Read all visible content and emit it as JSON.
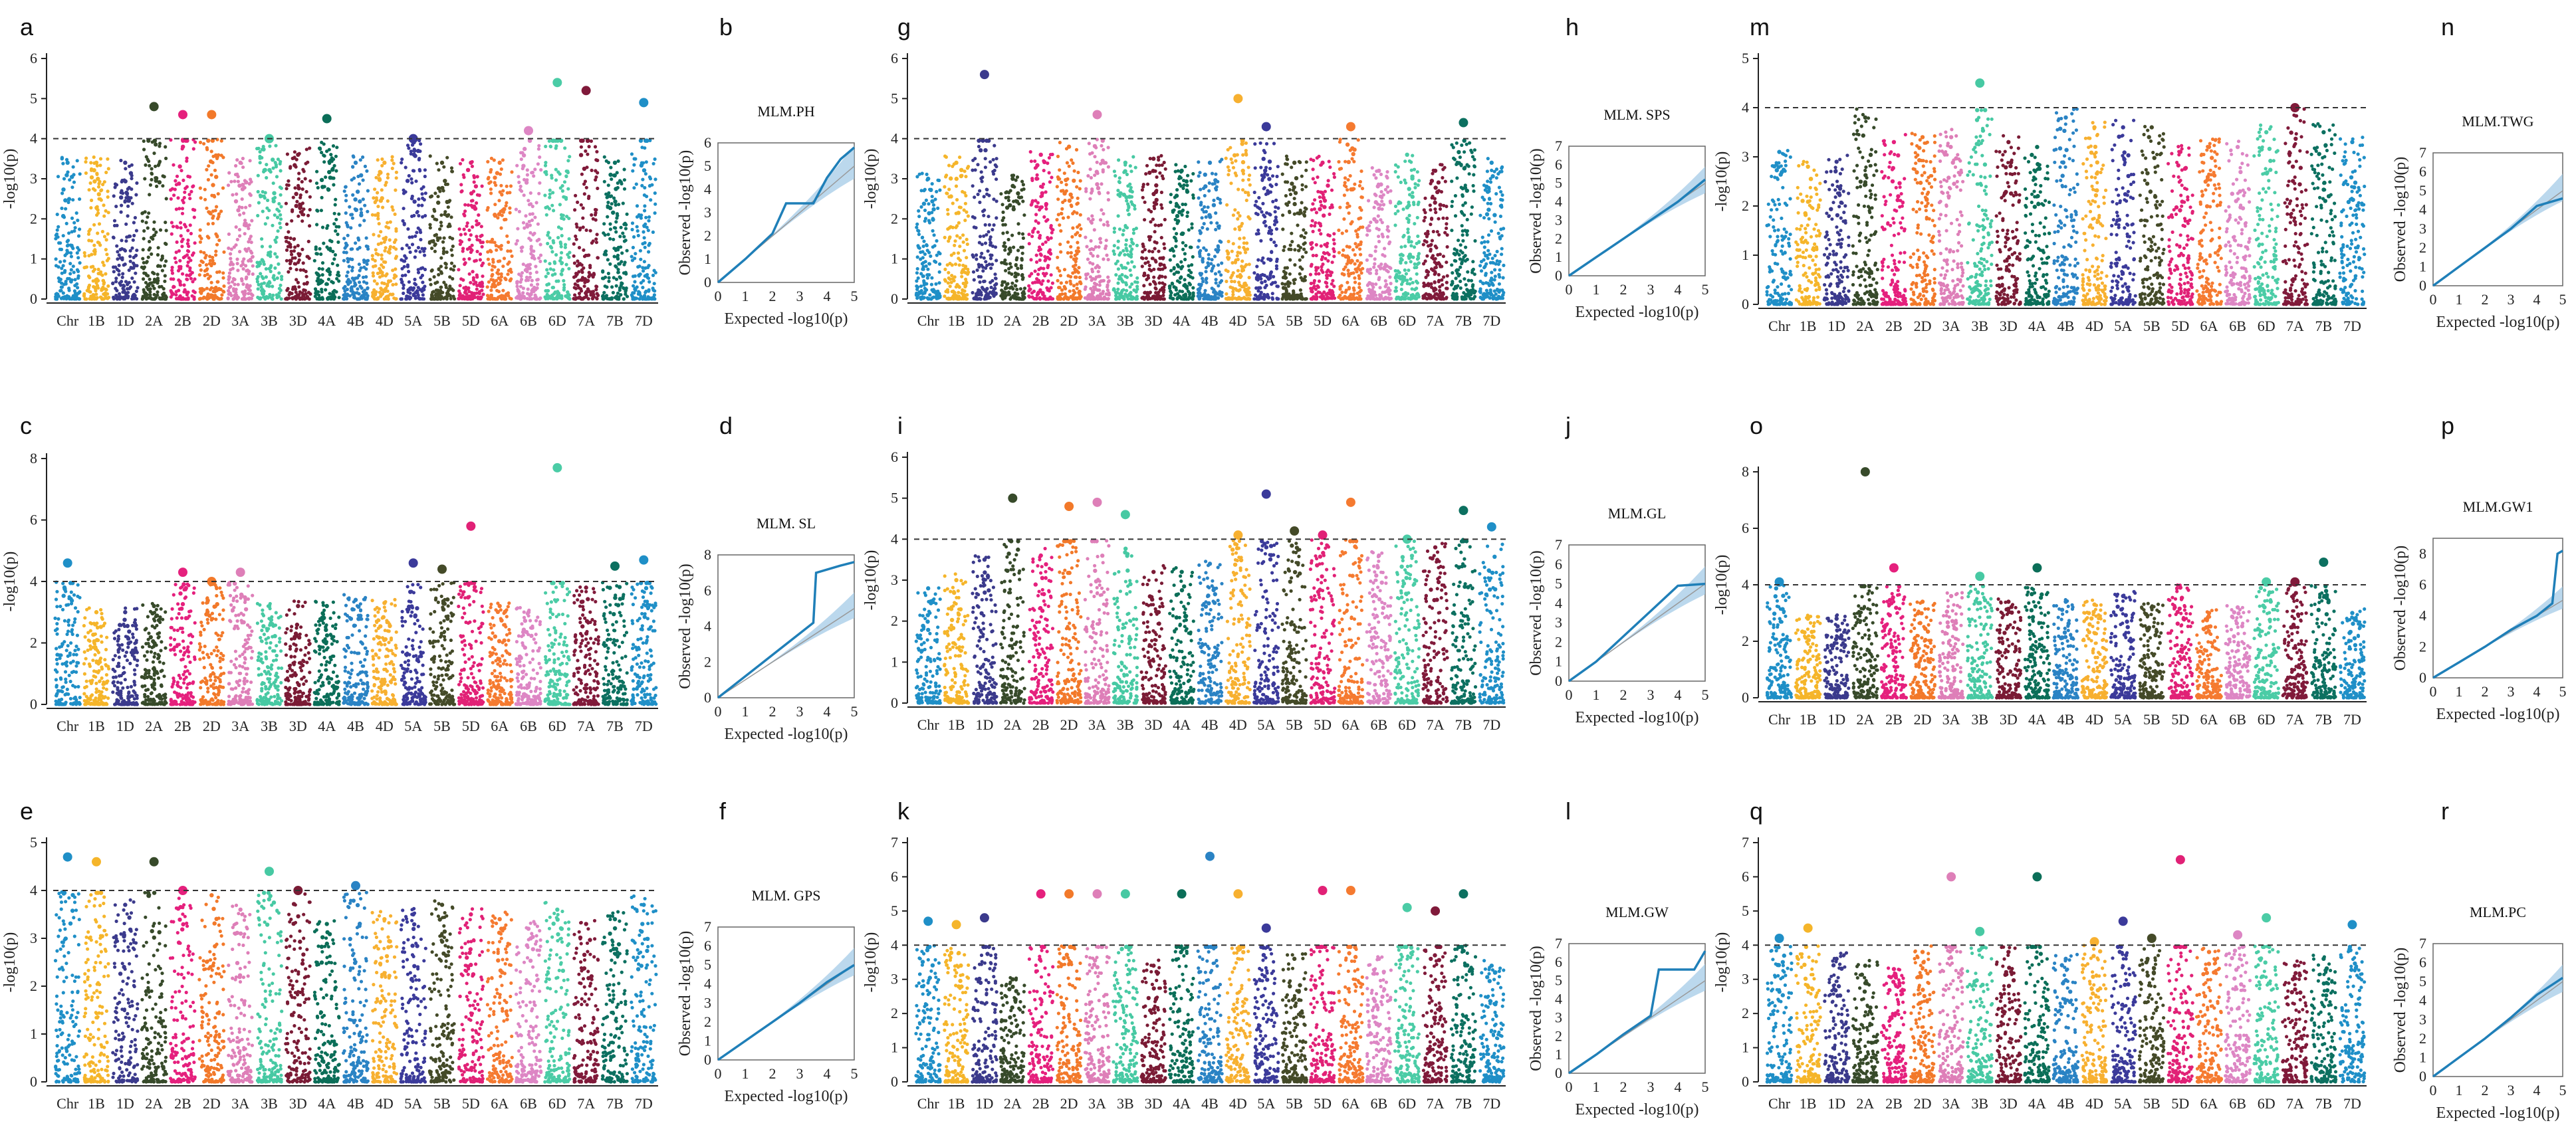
{
  "chromosomes": [
    "Chr",
    "1B",
    "1D",
    "2A",
    "2B",
    "2D",
    "3A",
    "3B",
    "3D",
    "4A",
    "4B",
    "4D",
    "5A",
    "5B",
    "5D",
    "6A",
    "6B",
    "6D",
    "7A",
    "7B",
    "7D"
  ],
  "chrom_colors": [
    "#1f8fc7",
    "#f5b52a",
    "#3b3a8c",
    "#374a2a",
    "#e5207d",
    "#f2792a",
    "#de7fb8",
    "#47c9a3",
    "#7a1b35",
    "#0b6e58",
    "#2a83c4",
    "#f7b030",
    "#3b3a9a",
    "#444a28",
    "#e12176",
    "#f57a30",
    "#dd86c4",
    "#4bcca6",
    "#801a3a",
    "#0c7060",
    "#1f8fc7"
  ],
  "axis_label": "-log10(p)",
  "qq_xlabel": "Expected -log10(p)",
  "qq_ylabel": "Observed -log10(p)",
  "chart_data": [
    {
      "type": "scatter",
      "panel": "a",
      "trait": "PH",
      "ylabel": "-log10(p)",
      "ylim": [
        0,
        6
      ],
      "yticks": [
        0,
        1,
        2,
        3,
        4,
        5,
        6
      ],
      "threshold": 4,
      "categories": [
        "Chr",
        "1B",
        "1D",
        "2A",
        "2B",
        "2D",
        "3A",
        "3B",
        "3D",
        "4A",
        "4B",
        "4D",
        "5A",
        "5B",
        "5D",
        "6A",
        "6B",
        "6D",
        "7A",
        "7B",
        "7D"
      ],
      "chrom_max": [
        3.4,
        3.4,
        3.4,
        4.8,
        4.6,
        4.6,
        3.4,
        4.0,
        3.6,
        4.5,
        3.4,
        3.4,
        4.0,
        3.4,
        3.4,
        3.4,
        4.2,
        5.4,
        5.2,
        3.4,
        4.9
      ],
      "seed": 11
    },
    {
      "type": "line",
      "panel": "b",
      "title": "MLM.PH",
      "xlabel": "Expected -log10(p)",
      "ylabel": "Observed -log10(p)",
      "xlim": [
        0,
        5
      ],
      "ylim": [
        0,
        6
      ],
      "yticks": [
        0,
        1,
        2,
        3,
        4,
        5,
        6
      ],
      "xticks": [
        0,
        1,
        2,
        3,
        4,
        5
      ],
      "curve": [
        [
          0,
          0
        ],
        [
          1,
          1.0
        ],
        [
          2,
          2.1
        ],
        [
          2.5,
          3.4
        ],
        [
          3.5,
          3.4
        ],
        [
          4,
          4.5
        ],
        [
          4.5,
          5.3
        ],
        [
          5,
          5.8
        ]
      ]
    },
    {
      "type": "scatter",
      "panel": "c",
      "trait": "SL",
      "ylabel": "-log10(p)",
      "ylim": [
        0,
        8
      ],
      "yticks": [
        0,
        2,
        4,
        6,
        8
      ],
      "threshold": 4,
      "categories": [
        "Chr",
        "1B",
        "1D",
        "2A",
        "2B",
        "2D",
        "3A",
        "3B",
        "3D",
        "4A",
        "4B",
        "4D",
        "5A",
        "5B",
        "5D",
        "6A",
        "6B",
        "6D",
        "7A",
        "7B",
        "7D"
      ],
      "chrom_max": [
        4.6,
        3.0,
        3.0,
        3.2,
        4.3,
        4.0,
        4.3,
        3.2,
        3.2,
        3.2,
        3.4,
        3.3,
        4.6,
        4.4,
        5.8,
        3.2,
        3.0,
        7.7,
        3.8,
        4.5,
        4.7
      ],
      "seed": 23
    },
    {
      "type": "line",
      "panel": "d",
      "title": "MLM. SL",
      "xlabel": "Expected -log10(p)",
      "ylabel": "Observed -log10(p)",
      "xlim": [
        0,
        5
      ],
      "ylim": [
        0,
        8
      ],
      "yticks": [
        0,
        2,
        4,
        6,
        8
      ],
      "xticks": [
        0,
        1,
        2,
        3,
        4,
        5
      ],
      "curve": [
        [
          0,
          0
        ],
        [
          1,
          1.2
        ],
        [
          2,
          2.4
        ],
        [
          3,
          3.6
        ],
        [
          3.5,
          4.2
        ],
        [
          3.6,
          7.0
        ],
        [
          4.5,
          7.4
        ],
        [
          5,
          7.6
        ]
      ]
    },
    {
      "type": "scatter",
      "panel": "e",
      "trait": "GPS",
      "ylabel": "-log10(p)",
      "ylim": [
        0,
        5
      ],
      "yticks": [
        0,
        1,
        2,
        3,
        4,
        5
      ],
      "threshold": 4,
      "categories": [
        "Chr",
        "1B",
        "1D",
        "2A",
        "2B",
        "2D",
        "3A",
        "3B",
        "3D",
        "4A",
        "4B",
        "4D",
        "5A",
        "5B",
        "5D",
        "6A",
        "6B",
        "6D",
        "7A",
        "7B",
        "7D"
      ],
      "chrom_max": [
        4.7,
        4.6,
        3.7,
        4.6,
        4.0,
        3.9,
        3.6,
        4.4,
        4.0,
        3.3,
        4.1,
        3.4,
        3.5,
        3.7,
        3.5,
        3.4,
        3.2,
        3.6,
        3.3,
        3.4,
        3.7
      ],
      "seed": 37
    },
    {
      "type": "line",
      "panel": "f",
      "title": "MLM. GPS",
      "xlabel": "Expected -log10(p)",
      "ylabel": "Observed -log10(p)",
      "xlim": [
        0,
        5
      ],
      "ylim": [
        0,
        7
      ],
      "yticks": [
        0,
        1,
        2,
        3,
        4,
        5,
        6,
        7
      ],
      "xticks": [
        0,
        1,
        2,
        3,
        4,
        5
      ],
      "curve": [
        [
          0,
          0
        ],
        [
          1,
          1.0
        ],
        [
          2,
          2.0
        ],
        [
          3,
          3.0
        ],
        [
          4,
          4.1
        ],
        [
          5,
          5.0
        ]
      ]
    },
    {
      "type": "scatter",
      "panel": "g",
      "trait": "SPS",
      "ylabel": "-log10(p)",
      "ylim": [
        0,
        6
      ],
      "yticks": [
        0,
        1,
        2,
        3,
        4,
        5,
        6
      ],
      "threshold": 4,
      "categories": [
        "Chr",
        "1B",
        "1D",
        "2A",
        "2B",
        "2D",
        "3A",
        "3B",
        "3D",
        "4A",
        "4B",
        "4D",
        "5A",
        "5B",
        "5D",
        "6A",
        "6B",
        "6D",
        "7A",
        "7B",
        "7D"
      ],
      "chrom_max": [
        3.0,
        3.4,
        5.6,
        3.0,
        3.6,
        3.8,
        4.6,
        3.4,
        3.5,
        3.2,
        3.4,
        5.0,
        4.3,
        3.4,
        3.4,
        4.3,
        3.2,
        3.6,
        3.2,
        4.4,
        3.4
      ],
      "seed": 41
    },
    {
      "type": "line",
      "panel": "h",
      "title": "MLM. SPS",
      "xlabel": "Expected -log10(p)",
      "ylabel": "Observed -log10(p)",
      "xlim": [
        0,
        5
      ],
      "ylim": [
        0,
        7
      ],
      "yticks": [
        0,
        1,
        2,
        3,
        4,
        5,
        6,
        7
      ],
      "xticks": [
        0,
        1,
        2,
        3,
        4,
        5
      ],
      "curve": [
        [
          0,
          0
        ],
        [
          1,
          1.0
        ],
        [
          2,
          2.0
        ],
        [
          3,
          3.0
        ],
        [
          4,
          4.0
        ],
        [
          5,
          5.2
        ]
      ]
    },
    {
      "type": "scatter",
      "panel": "i",
      "trait": "GL",
      "ylabel": "-log10(p)",
      "ylim": [
        0,
        6
      ],
      "yticks": [
        0,
        1,
        2,
        3,
        4,
        5,
        6
      ],
      "threshold": 4,
      "categories": [
        "Chr",
        "1B",
        "1D",
        "2A",
        "2B",
        "2D",
        "3A",
        "3B",
        "3D",
        "4A",
        "4B",
        "4D",
        "5A",
        "5B",
        "5D",
        "6A",
        "6B",
        "6D",
        "7A",
        "7B",
        "7D"
      ],
      "chrom_max": [
        2.8,
        3.0,
        3.5,
        5.0,
        3.6,
        4.8,
        4.9,
        4.6,
        3.2,
        3.2,
        3.4,
        4.1,
        5.1,
        4.2,
        4.1,
        4.9,
        3.6,
        4.0,
        3.8,
        4.7,
        4.3
      ],
      "seed": 53
    },
    {
      "type": "line",
      "panel": "j",
      "title": "MLM.GL",
      "xlabel": "Expected -log10(p)",
      "ylabel": "Observed -log10(p)",
      "xlim": [
        0,
        5
      ],
      "ylim": [
        0,
        7
      ],
      "yticks": [
        0,
        1,
        2,
        3,
        4,
        5,
        6,
        7
      ],
      "xticks": [
        0,
        1,
        2,
        3,
        4,
        5
      ],
      "curve": [
        [
          0,
          0
        ],
        [
          1,
          1.0
        ],
        [
          2,
          2.3
        ],
        [
          3,
          3.6
        ],
        [
          4,
          4.9
        ],
        [
          5,
          5.0
        ]
      ]
    },
    {
      "type": "scatter",
      "panel": "k",
      "trait": "GW",
      "ylabel": "-log10(p)",
      "ylim": [
        0,
        7
      ],
      "yticks": [
        0,
        1,
        2,
        3,
        4,
        5,
        6,
        7
      ],
      "threshold": 4,
      "categories": [
        "Chr",
        "1B",
        "1D",
        "2A",
        "2B",
        "2D",
        "3A",
        "3B",
        "3D",
        "4A",
        "4B",
        "4D",
        "5A",
        "5B",
        "5D",
        "6A",
        "6B",
        "6D",
        "7A",
        "7B",
        "7D"
      ],
      "chrom_max": [
        4.7,
        4.6,
        4.8,
        3.0,
        5.5,
        5.5,
        5.5,
        5.5,
        3.4,
        5.5,
        6.6,
        5.5,
        4.5,
        3.6,
        5.6,
        5.6,
        3.6,
        5.1,
        5.0,
        5.5,
        3.4
      ],
      "seed": 67
    },
    {
      "type": "line",
      "panel": "l",
      "title": "MLM.GW",
      "xlabel": "Expected -log10(p)",
      "ylabel": "Observed -log10(p)",
      "xlim": [
        0,
        5
      ],
      "ylim": [
        0,
        7
      ],
      "yticks": [
        0,
        1,
        2,
        3,
        4,
        5,
        6,
        7
      ],
      "xticks": [
        0,
        1,
        2,
        3,
        4,
        5
      ],
      "curve": [
        [
          0,
          0
        ],
        [
          1,
          1.0
        ],
        [
          2,
          2.1
        ],
        [
          3,
          3.1
        ],
        [
          3.3,
          5.6
        ],
        [
          4.6,
          5.6
        ],
        [
          5,
          6.6
        ]
      ]
    },
    {
      "type": "scatter",
      "panel": "m",
      "trait": "TWG",
      "ylabel": "-log10(p)",
      "ylim": [
        0,
        5
      ],
      "yticks": [
        0,
        1,
        2,
        3,
        4,
        5
      ],
      "threshold": 4,
      "categories": [
        "Chr",
        "1B",
        "1D",
        "2A",
        "2B",
        "2D",
        "3A",
        "3B",
        "3D",
        "4A",
        "4B",
        "4D",
        "5A",
        "5B",
        "5D",
        "6A",
        "6B",
        "6D",
        "7A",
        "7B",
        "7D"
      ],
      "chrom_max": [
        3.1,
        2.8,
        2.9,
        3.8,
        3.3,
        3.4,
        3.4,
        4.5,
        3.3,
        3.2,
        3.8,
        3.6,
        3.6,
        3.6,
        3.1,
        3.2,
        3.2,
        3.5,
        4.0,
        3.5,
        3.3
      ],
      "seed": 71
    },
    {
      "type": "line",
      "panel": "n",
      "title": "MLM.TWG",
      "xlabel": "Expected -log10(p)",
      "ylabel": "Observed -log10(p)",
      "xlim": [
        0,
        5
      ],
      "ylim": [
        0,
        7
      ],
      "yticks": [
        0,
        1,
        2,
        3,
        4,
        5,
        6,
        7
      ],
      "xticks": [
        0,
        1,
        2,
        3,
        4,
        5
      ],
      "curve": [
        [
          0,
          0
        ],
        [
          1,
          1.0
        ],
        [
          2,
          2.0
        ],
        [
          3,
          3.0
        ],
        [
          4,
          4.2
        ],
        [
          5,
          4.6
        ]
      ]
    },
    {
      "type": "scatter",
      "panel": "o",
      "trait": "GW1",
      "ylabel": "-log10(p)",
      "ylim": [
        0,
        8
      ],
      "yticks": [
        0,
        2,
        4,
        6,
        8
      ],
      "threshold": 4,
      "categories": [
        "Chr",
        "1B",
        "1D",
        "2A",
        "2B",
        "2D",
        "3A",
        "3B",
        "3D",
        "4A",
        "4B",
        "4D",
        "5A",
        "5B",
        "5D",
        "6A",
        "6B",
        "6D",
        "7A",
        "7B",
        "7D"
      ],
      "chrom_max": [
        4.1,
        2.8,
        2.8,
        8.0,
        4.6,
        3.4,
        3.6,
        4.3,
        3.4,
        4.6,
        3.4,
        3.3,
        3.6,
        3.2,
        3.9,
        3.0,
        3.2,
        4.1,
        4.1,
        4.8,
        3.0
      ],
      "seed": 83
    },
    {
      "type": "line",
      "panel": "p",
      "title": "MLM.GW1",
      "xlabel": "Expected -log10(p)",
      "ylabel": "Observed -log10(p)",
      "xlim": [
        0,
        5
      ],
      "ylim": [
        0,
        9
      ],
      "yticks": [
        0,
        2,
        4,
        6,
        8
      ],
      "xticks": [
        0,
        1,
        2,
        3,
        4,
        5
      ],
      "curve": [
        [
          0,
          0
        ],
        [
          1,
          1.0
        ],
        [
          2,
          2.0
        ],
        [
          3,
          3.1
        ],
        [
          4,
          4.0
        ],
        [
          4.6,
          4.8
        ],
        [
          4.8,
          8.0
        ],
        [
          5,
          8.2
        ]
      ]
    },
    {
      "type": "scatter",
      "panel": "q",
      "trait": "PC",
      "ylabel": "-log10(p)",
      "ylim": [
        0,
        7
      ],
      "yticks": [
        0,
        1,
        2,
        3,
        4,
        5,
        6,
        7
      ],
      "threshold": 4,
      "categories": [
        "Chr",
        "1B",
        "1D",
        "2A",
        "2B",
        "2D",
        "3A",
        "3B",
        "3D",
        "4A",
        "4B",
        "4D",
        "5A",
        "5B",
        "5D",
        "6A",
        "6B",
        "6D",
        "7A",
        "7B",
        "7D"
      ],
      "chrom_max": [
        4.2,
        4.5,
        3.6,
        3.4,
        3.3,
        3.8,
        6.0,
        4.4,
        3.8,
        6.0,
        3.6,
        4.1,
        4.7,
        4.2,
        6.5,
        3.8,
        4.3,
        4.8,
        3.4,
        3.6,
        4.6
      ],
      "seed": 97
    },
    {
      "type": "line",
      "panel": "r",
      "title": "MLM.PC",
      "xlabel": "Expected -log10(p)",
      "ylabel": "Observed -log10(p)",
      "xlim": [
        0,
        5
      ],
      "ylim": [
        0,
        7
      ],
      "yticks": [
        0,
        1,
        2,
        3,
        4,
        5,
        6,
        7
      ],
      "xticks": [
        0,
        1,
        2,
        3,
        4,
        5
      ],
      "curve": [
        [
          0,
          0
        ],
        [
          1,
          1.0
        ],
        [
          2,
          2.0
        ],
        [
          3,
          3.1
        ],
        [
          4,
          4.3
        ],
        [
          5,
          5.2
        ]
      ]
    }
  ]
}
